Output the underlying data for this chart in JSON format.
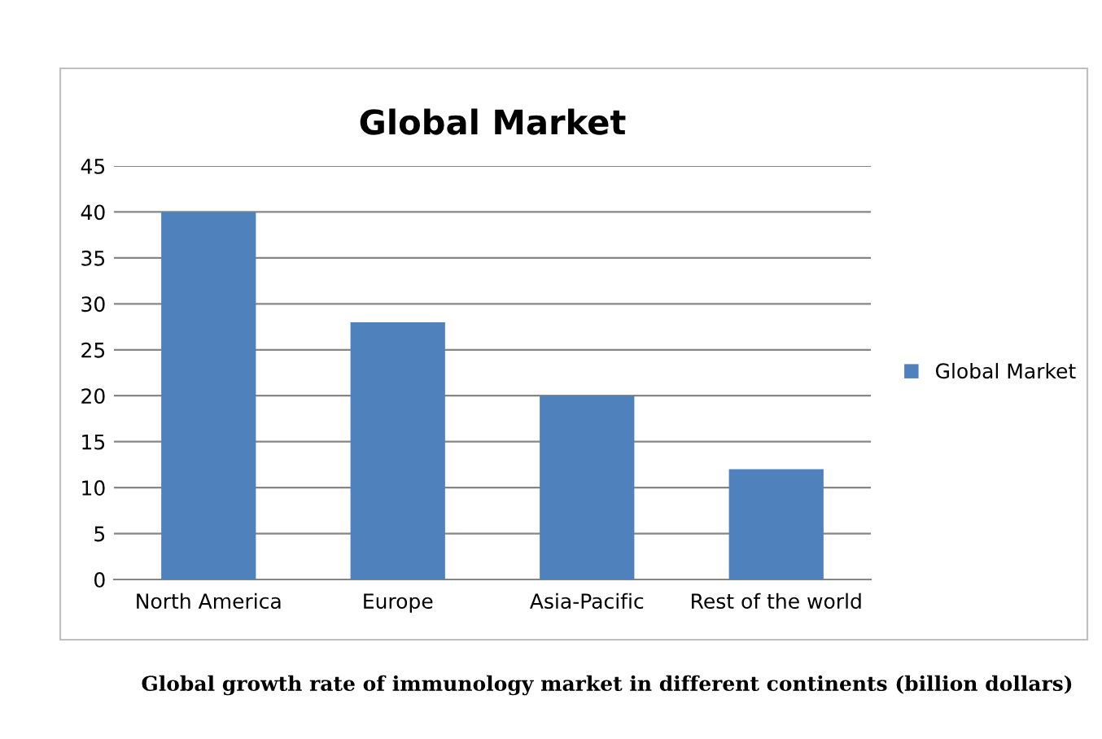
{
  "chart_data": {
    "type": "bar",
    "title": "Global Market",
    "categories": [
      "North America",
      "Europe",
      "Asia-Pacific",
      "Rest of the world"
    ],
    "series": [
      {
        "name": "Global Market",
        "color": "#4f81bd",
        "values": [
          40,
          28,
          20,
          12
        ]
      }
    ],
    "ylim": [
      0,
      45
    ],
    "yticks": [
      0,
      5,
      10,
      15,
      20,
      25,
      30,
      35,
      40,
      45
    ],
    "grid": "y",
    "legend": "right",
    "annotations": [
      "Global growth rate of immunology market in different continents (billion dollars)"
    ]
  }
}
